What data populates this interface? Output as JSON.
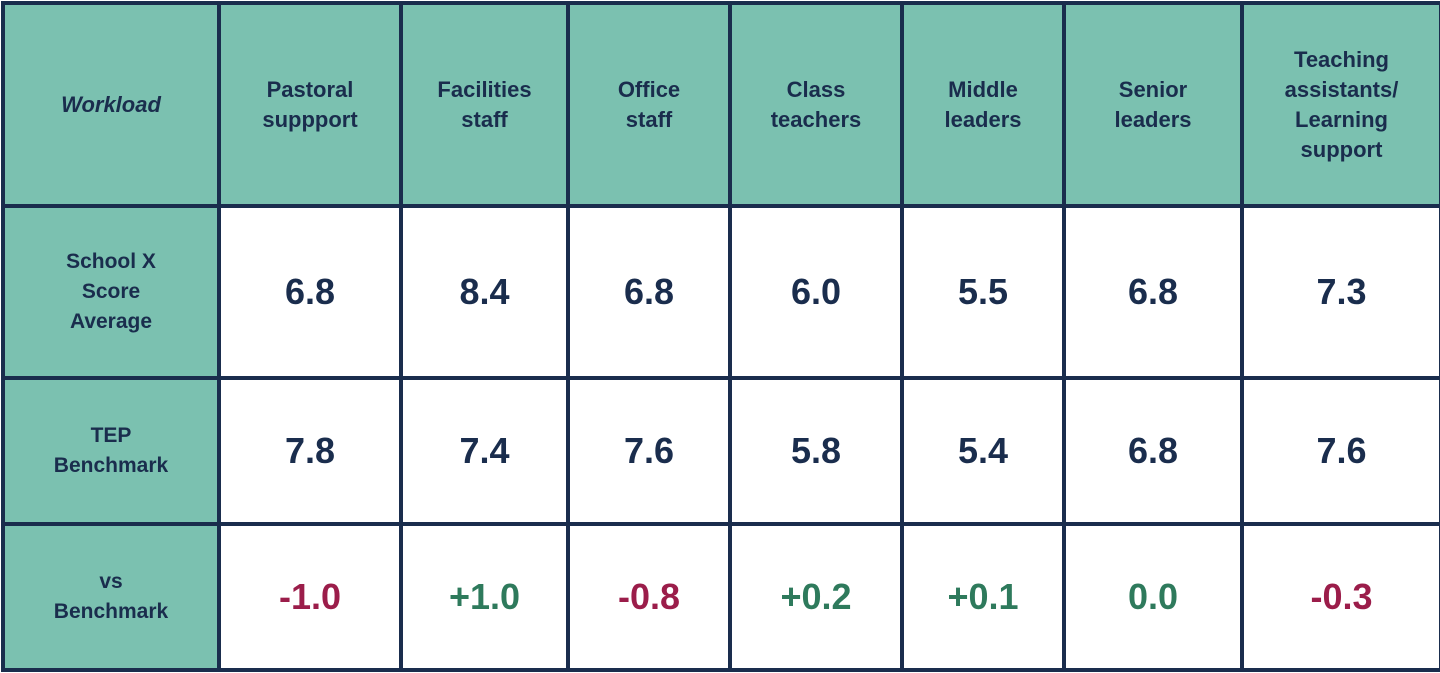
{
  "colors": {
    "header_bg": "#7bc1b0",
    "border": "#1a2d4d",
    "text": "#1a2d4d",
    "negative": "#9b1d4a",
    "positive": "#2e7a5c",
    "cell_bg": "#ffffff"
  },
  "table": {
    "corner_label": "Workload",
    "columns": [
      [
        "Pastoral",
        "suppport"
      ],
      [
        "Facilities",
        "staff"
      ],
      [
        "Office",
        "staff"
      ],
      [
        "Class",
        "teachers"
      ],
      [
        "Middle",
        "leaders"
      ],
      [
        "Senior",
        "leaders"
      ],
      [
        "Teaching",
        "assistants/",
        "Learning",
        "support"
      ]
    ],
    "row_labels": {
      "school": [
        "School X",
        "Score",
        "Average"
      ],
      "benchmark": [
        "TEP",
        "Benchmark"
      ],
      "diff": [
        "vs",
        "Benchmark"
      ]
    }
  },
  "chart_data": {
    "type": "table",
    "columns": [
      "Pastoral suppport",
      "Facilities staff",
      "Office staff",
      "Class teachers",
      "Middle leaders",
      "Senior leaders",
      "Teaching assistants/ Learning support"
    ],
    "rows": [
      {
        "label": "School X Score Average",
        "values": [
          "6.8",
          "8.4",
          "6.8",
          "6.0",
          "5.5",
          "6.8",
          "7.3"
        ]
      },
      {
        "label": "TEP Benchmark",
        "values": [
          "7.8",
          "7.4",
          "7.6",
          "5.8",
          "5.4",
          "6.8",
          "7.6"
        ]
      },
      {
        "label": "vs Benchmark",
        "values": [
          "-1.0",
          "+1.0",
          "-0.8",
          "+0.2",
          "+0.1",
          "0.0",
          "-0.3"
        ],
        "sign": [
          "neg",
          "pos",
          "neg",
          "pos",
          "pos",
          "pos",
          "neg"
        ]
      }
    ]
  }
}
